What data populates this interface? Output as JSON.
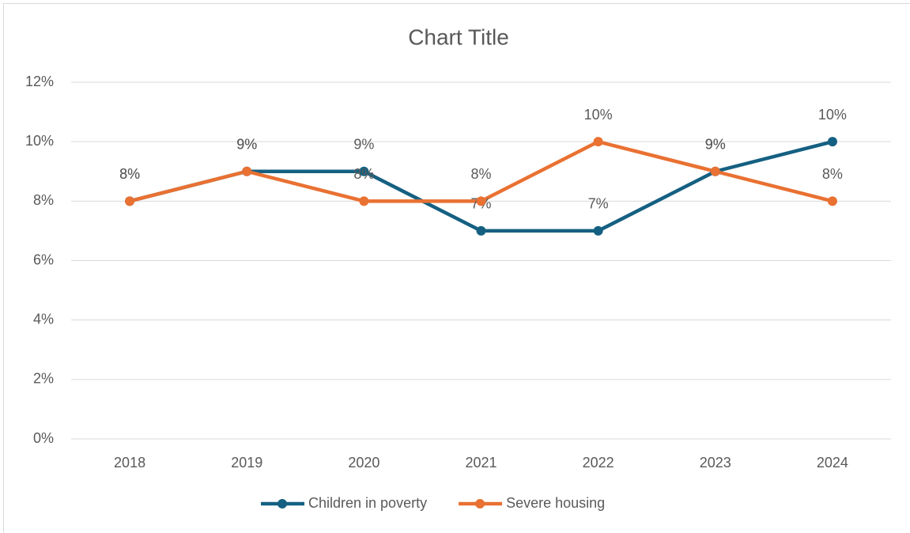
{
  "chart_data": {
    "type": "line",
    "title": "Chart Title",
    "categories": [
      "2018",
      "2019",
      "2020",
      "2021",
      "2022",
      "2023",
      "2024"
    ],
    "series": [
      {
        "name": "Children in poverty",
        "color": "#156082",
        "values": [
          8,
          9,
          9,
          7,
          7,
          9,
          10
        ],
        "value_labels": [
          "8%",
          "9%",
          "9%",
          "7%",
          "7%",
          "9%",
          "10%"
        ]
      },
      {
        "name": "Severe housing",
        "color": "#e97132",
        "values": [
          8,
          9,
          8,
          8,
          10,
          9,
          8
        ],
        "value_labels": [
          "8%",
          "9%",
          "8%",
          "8%",
          "10%",
          "9%",
          "8%"
        ]
      }
    ],
    "ylim": [
      0,
      12
    ],
    "yticks": [
      {
        "value": 0,
        "label": "0%"
      },
      {
        "value": 2,
        "label": "2%"
      },
      {
        "value": 4,
        "label": "4%"
      },
      {
        "value": 6,
        "label": "6%"
      },
      {
        "value": 8,
        "label": "8%"
      },
      {
        "value": 10,
        "label": "10%"
      },
      {
        "value": 12,
        "label": "12%"
      }
    ],
    "grid": true,
    "legend": "bottom"
  }
}
